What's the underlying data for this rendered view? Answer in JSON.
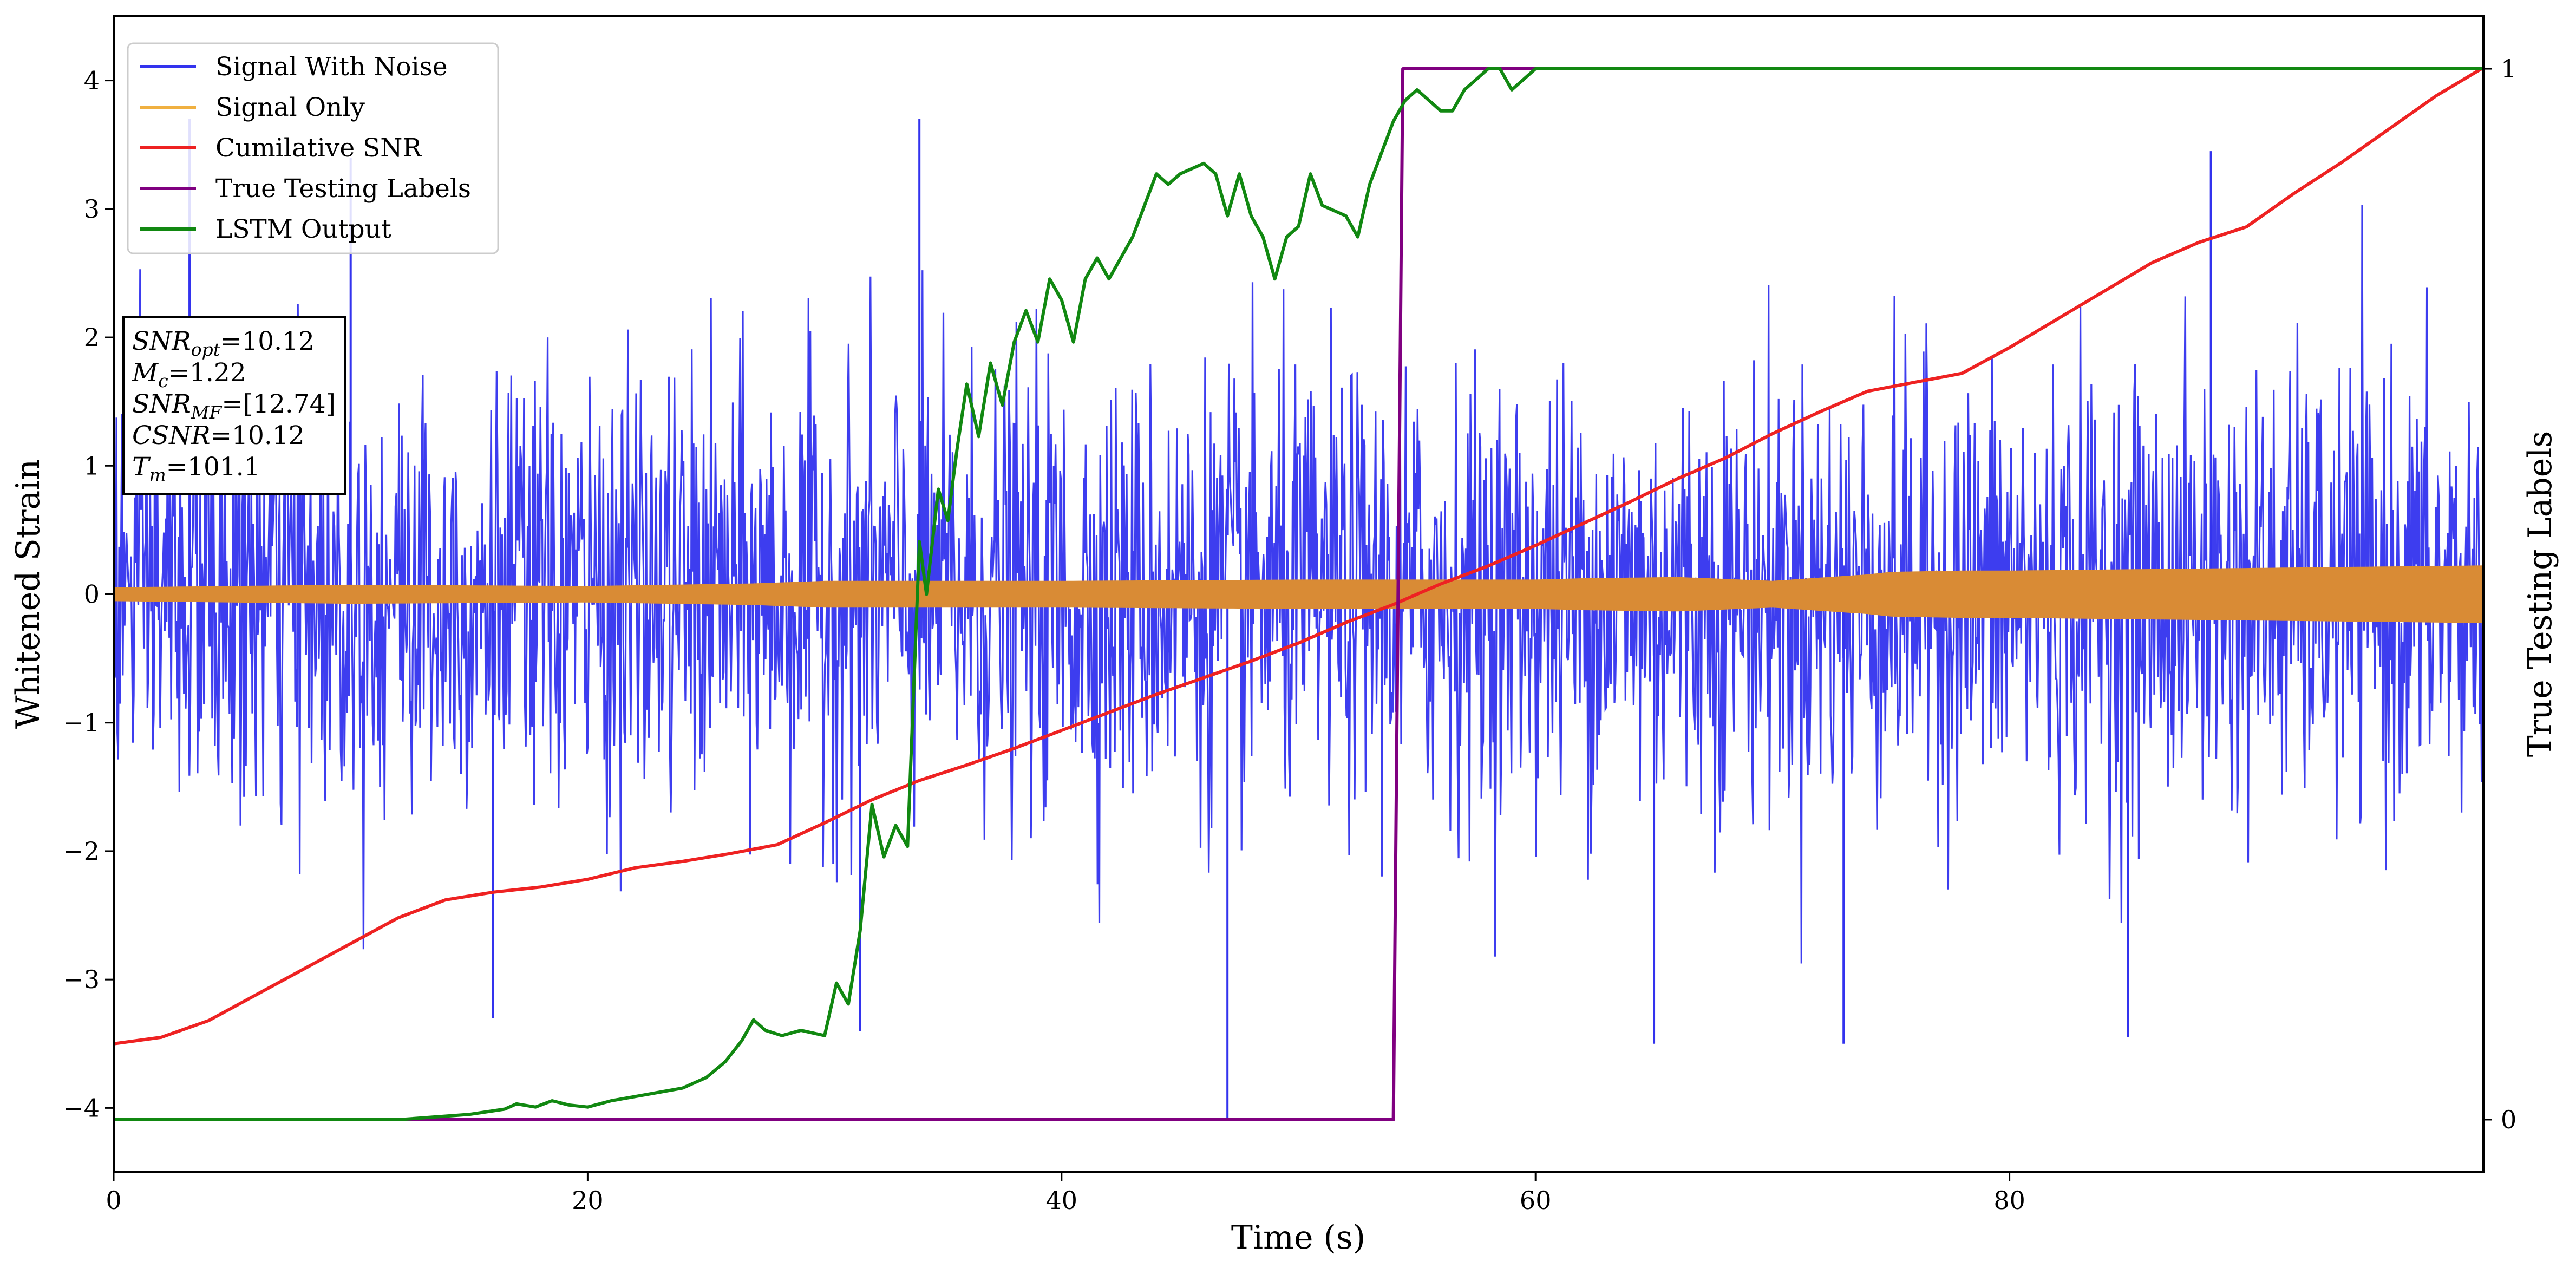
{
  "chart_data": {
    "type": "line",
    "xlabel": "Time (s)",
    "ylabel": "Whitened Strain",
    "ylabel_right": "True Testing Labels",
    "xlim": [
      0,
      100
    ],
    "ylim": [
      -4.5,
      4.5
    ],
    "ylim_right": [
      -0.05,
      1.05
    ],
    "x_ticks": [
      "0",
      "20",
      "40",
      "60",
      "80"
    ],
    "y_ticks": [
      "−4",
      "−3",
      "−2",
      "−1",
      "0",
      "1",
      "2",
      "3",
      "4"
    ],
    "y_ticks_right": [
      "0",
      "1"
    ],
    "legend_position": "upper-left",
    "grid": false,
    "legend": [
      {
        "label": "Signal With Noise",
        "color": "#3333ee"
      },
      {
        "label": "Signal Only",
        "color": "#f0b040"
      },
      {
        "label": "Cumilative SNR",
        "color": "#ee2222"
      },
      {
        "label": "True Testing Labels",
        "color": "#800080"
      },
      {
        "label": "LSTM Output",
        "color": "#118811"
      }
    ],
    "info_box": [
      {
        "key": "SNR",
        "sub": "opt",
        "value": "=10.12"
      },
      {
        "key": "M",
        "sub": "c",
        "value": "=1.22"
      },
      {
        "key": "SNR",
        "sub": "MF",
        "value": "=[12.74]"
      },
      {
        "key": "CSNR",
        "sub": "",
        "value": "=10.12"
      },
      {
        "key": "T",
        "sub": "m",
        "value": "=101.1"
      }
    ],
    "series": [
      {
        "name": "Signal With Noise",
        "axis": "left",
        "style": "dense-noise",
        "typical_upper": [
          0.9,
          3.4
        ],
        "typical_lower": [
          -0.9,
          -3.5
        ],
        "spikes": [
          {
            "x": 3.2,
            "y": 3.7
          },
          {
            "x": 47.0,
            "y": -4.1
          },
          {
            "x": 16.0,
            "y": -3.3
          },
          {
            "x": 31.5,
            "y": -3.4
          },
          {
            "x": 65.0,
            "y": -3.5
          },
          {
            "x": 73.0,
            "y": -3.5
          },
          {
            "x": 85.0,
            "y": -3.45
          },
          {
            "x": 34.0,
            "y": 3.7
          },
          {
            "x": 10.0,
            "y": 3.4
          },
          {
            "x": 88.5,
            "y": 3.45
          }
        ]
      },
      {
        "name": "Signal Only",
        "axis": "left",
        "style": "envelope",
        "x": [
          0,
          10,
          20,
          27,
          30,
          40,
          50,
          60,
          62,
          66,
          70,
          74,
          75,
          78,
          80,
          90,
          100
        ],
        "amplitude": [
          0.05,
          0.07,
          0.06,
          0.08,
          0.1,
          0.1,
          0.11,
          0.11,
          0.12,
          0.13,
          0.1,
          0.15,
          0.17,
          0.18,
          0.18,
          0.2,
          0.22
        ]
      },
      {
        "name": "Cumilative SNR",
        "axis": "left",
        "x": [
          0,
          2,
          4,
          6,
          8,
          10,
          12,
          14,
          16,
          18,
          20,
          22,
          24,
          26,
          28,
          30,
          32,
          34,
          36,
          38,
          40,
          42,
          44,
          46,
          48,
          50,
          52,
          54,
          56,
          58,
          60,
          62,
          64,
          66,
          68,
          70,
          72,
          74,
          76,
          78,
          80,
          82,
          84,
          86,
          88,
          90,
          92,
          94,
          96,
          98,
          100
        ],
        "y": [
          -3.5,
          -3.45,
          -3.32,
          -3.12,
          -2.92,
          -2.72,
          -2.52,
          -2.38,
          -2.32,
          -2.28,
          -2.22,
          -2.13,
          -2.08,
          -2.02,
          -1.95,
          -1.78,
          -1.6,
          -1.45,
          -1.33,
          -1.2,
          -1.06,
          -0.92,
          -0.78,
          -0.65,
          -0.52,
          -0.38,
          -0.22,
          -0.08,
          0.08,
          0.22,
          0.38,
          0.55,
          0.72,
          0.9,
          1.06,
          1.25,
          1.42,
          1.58,
          1.65,
          1.72,
          1.92,
          2.14,
          2.36,
          2.58,
          2.74,
          2.86,
          3.12,
          3.36,
          3.62,
          3.88,
          4.1
        ]
      },
      {
        "name": "True Testing Labels",
        "axis": "right",
        "x": [
          0,
          54.0,
          54.4,
          100
        ],
        "y": [
          0,
          0,
          1,
          1
        ]
      },
      {
        "name": "LSTM Output",
        "axis": "right",
        "x": [
          0,
          12,
          15,
          16.5,
          17,
          17.8,
          18.5,
          19.2,
          20,
          21,
          22,
          23,
          24,
          25,
          25.8,
          26.5,
          27.0,
          27.5,
          28.2,
          29,
          30,
          30.5,
          31,
          31.5,
          32,
          32.5,
          33,
          33.5,
          34,
          34.3,
          34.8,
          35.2,
          35.6,
          36,
          36.5,
          37,
          37.5,
          38,
          38.5,
          39,
          39.5,
          40,
          40.5,
          41,
          41.5,
          42,
          43,
          44,
          44.5,
          45,
          46,
          46.5,
          47,
          47.5,
          48,
          48.5,
          49,
          49.5,
          50,
          50.5,
          51,
          52,
          52.5,
          53,
          53.5,
          54,
          54.5,
          55,
          55.5,
          56,
          56.5,
          57,
          57.5,
          58,
          58.5,
          59,
          60,
          61,
          62,
          63,
          65,
          70,
          100
        ],
        "y": [
          0,
          0,
          0.005,
          0.01,
          0.015,
          0.012,
          0.018,
          0.014,
          0.012,
          0.018,
          0.022,
          0.026,
          0.03,
          0.04,
          0.055,
          0.075,
          0.095,
          0.085,
          0.08,
          0.085,
          0.08,
          0.13,
          0.11,
          0.18,
          0.3,
          0.25,
          0.28,
          0.26,
          0.55,
          0.5,
          0.6,
          0.57,
          0.64,
          0.7,
          0.65,
          0.72,
          0.68,
          0.74,
          0.77,
          0.74,
          0.8,
          0.78,
          0.74,
          0.8,
          0.82,
          0.8,
          0.84,
          0.9,
          0.89,
          0.9,
          0.91,
          0.9,
          0.86,
          0.9,
          0.86,
          0.84,
          0.8,
          0.84,
          0.85,
          0.9,
          0.87,
          0.86,
          0.84,
          0.89,
          0.92,
          0.95,
          0.97,
          0.98,
          0.97,
          0.96,
          0.96,
          0.98,
          0.99,
          1.0,
          1.0,
          0.98,
          1.0,
          1.0,
          1.0,
          1.0,
          1.0,
          1.0,
          1.0
        ]
      }
    ]
  }
}
